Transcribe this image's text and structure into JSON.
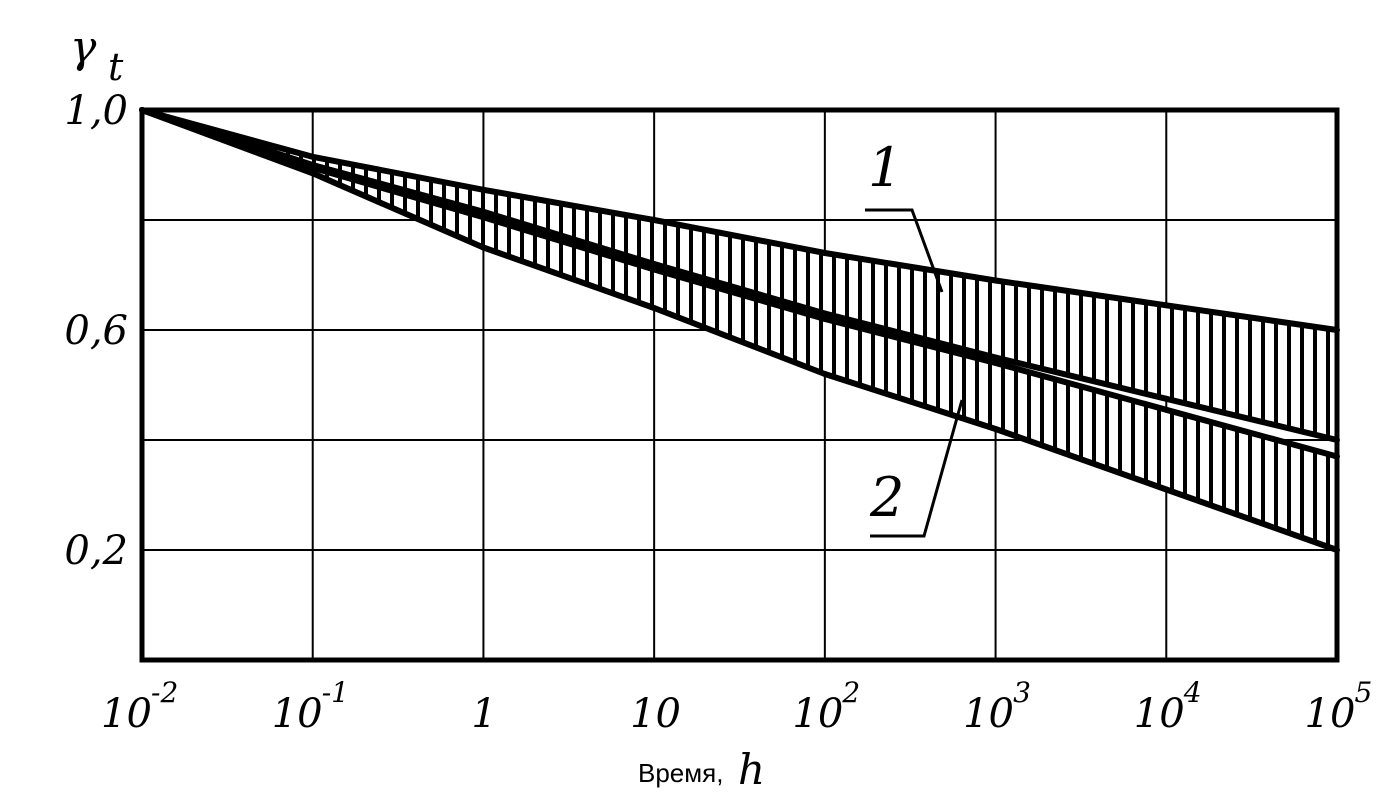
{
  "chart_data": {
    "type": "area",
    "x_scale": "log",
    "xlim": [
      0.01,
      100000
    ],
    "ylim": [
      0,
      1.0
    ],
    "grid": true,
    "xlabel": "Время,",
    "xlabel_unit": "h",
    "ylabel": "γ",
    "ylabel_sub": "t",
    "x_ticks": [
      {
        "value": 0.01,
        "base": "10",
        "exp": "-2"
      },
      {
        "value": 0.1,
        "base": "10",
        "exp": "-1"
      },
      {
        "value": 1,
        "base": "1",
        "exp": ""
      },
      {
        "value": 10,
        "base": "10",
        "exp": ""
      },
      {
        "value": 100,
        "base": "10",
        "exp": "2"
      },
      {
        "value": 1000,
        "base": "10",
        "exp": "3"
      },
      {
        "value": 10000,
        "base": "10",
        "exp": "4"
      },
      {
        "value": 100000,
        "base": "10",
        "exp": "5"
      }
    ],
    "y_ticks": [
      {
        "value": 1.0,
        "label": "1,0"
      },
      {
        "value": 0.6,
        "label": "0,6"
      },
      {
        "value": 0.2,
        "label": "0,2"
      }
    ],
    "y_grid": [
      0.2,
      0.4,
      0.6,
      0.8,
      1.0
    ],
    "series": [
      {
        "label": "1",
        "upper": [
          [
            0.01,
            1.0
          ],
          [
            0.1,
            0.915
          ],
          [
            1,
            0.855
          ],
          [
            10,
            0.8
          ],
          [
            100,
            0.74
          ],
          [
            1000,
            0.69
          ],
          [
            10000,
            0.645
          ],
          [
            100000,
            0.6
          ]
        ],
        "lower": [
          [
            0.01,
            1.0
          ],
          [
            0.1,
            0.9
          ],
          [
            1,
            0.815
          ],
          [
            10,
            0.72
          ],
          [
            100,
            0.63
          ],
          [
            1000,
            0.55
          ],
          [
            10000,
            0.475
          ],
          [
            100000,
            0.4
          ]
        ]
      },
      {
        "label": "2",
        "upper": [
          [
            0.01,
            1.0
          ],
          [
            0.1,
            0.895
          ],
          [
            1,
            0.805
          ],
          [
            10,
            0.71
          ],
          [
            100,
            0.62
          ],
          [
            1000,
            0.54
          ],
          [
            10000,
            0.455
          ],
          [
            100000,
            0.37
          ]
        ],
        "lower": [
          [
            0.01,
            1.0
          ],
          [
            0.1,
            0.885
          ],
          [
            1,
            0.75
          ],
          [
            10,
            0.64
          ],
          [
            100,
            0.52
          ],
          [
            1000,
            0.42
          ],
          [
            10000,
            0.31
          ],
          [
            100000,
            0.2
          ]
        ]
      }
    ]
  }
}
